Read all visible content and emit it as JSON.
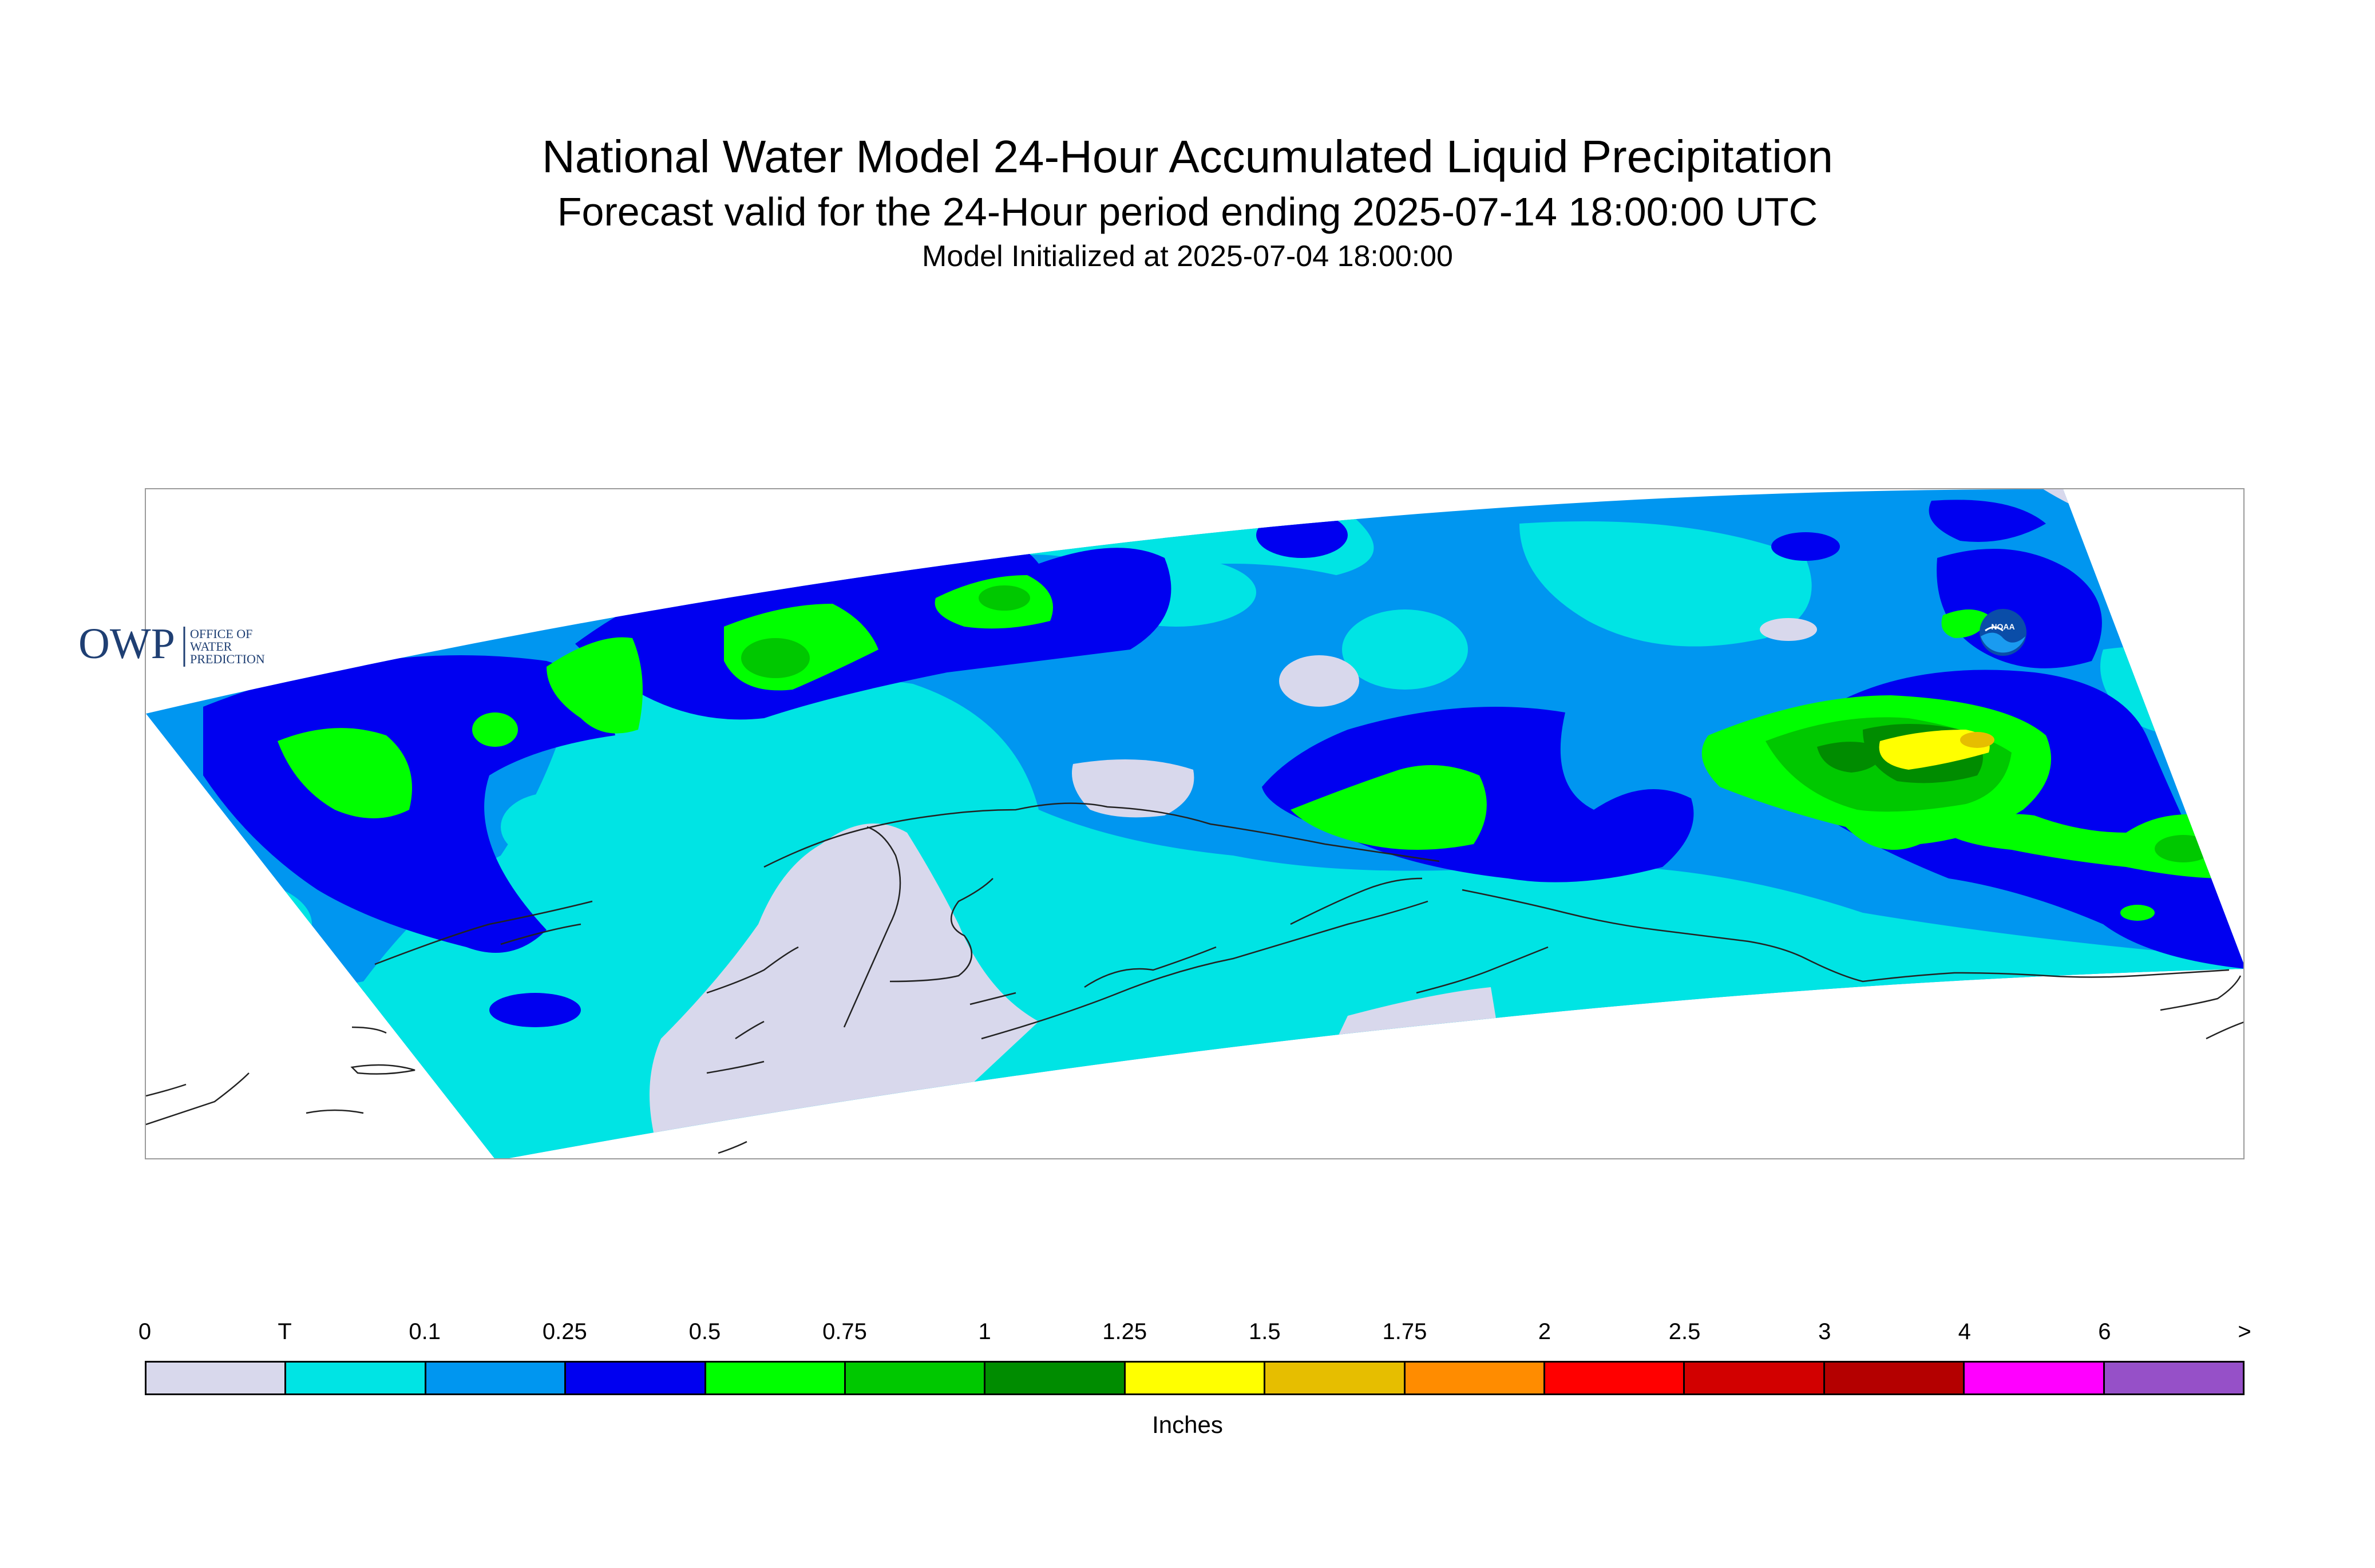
{
  "header": {
    "title": "National Water Model 24-Hour Accumulated Liquid Precipitation",
    "subtitle": "Forecast valid for the 24-Hour period ending 2025-07-14 18:00:00 UTC",
    "init_text": "Model Initialized at 2025-07-04 18:00:00"
  },
  "logos": {
    "owp_mark": "OWP",
    "owp_text_1": "OFFICE OF",
    "owp_text_2": "WATER",
    "owp_text_3": "PREDICTION",
    "noaa_mark": "NOAA"
  },
  "legend": {
    "units": "Inches",
    "labels": [
      "0",
      "T",
      "0.1",
      "0.25",
      "0.5",
      "0.75",
      "1",
      "1.25",
      "1.5",
      "1.75",
      "2",
      "2.5",
      "3",
      "4",
      "6",
      ">"
    ],
    "colors": [
      "#d8d8ec",
      "#00e4e4",
      "#0096f0",
      "#0000f0",
      "#00ff00",
      "#00c800",
      "#008c00",
      "#ffff00",
      "#e6be00",
      "#ff8c00",
      "#ff0000",
      "#d20000",
      "#b40000",
      "#ff00ff",
      "#9650c8"
    ]
  },
  "map_colors": {
    "zero": "#d8d8ec",
    "trace": "#00e4e4",
    "p01": "#0096f0",
    "p025": "#0000f0",
    "p05": "#00ff00",
    "p075": "#00c800",
    "p1": "#008c00",
    "p125": "#ffff00",
    "p15": "#e6be00",
    "coast": "#222222",
    "frame": "#9a9a9a"
  }
}
